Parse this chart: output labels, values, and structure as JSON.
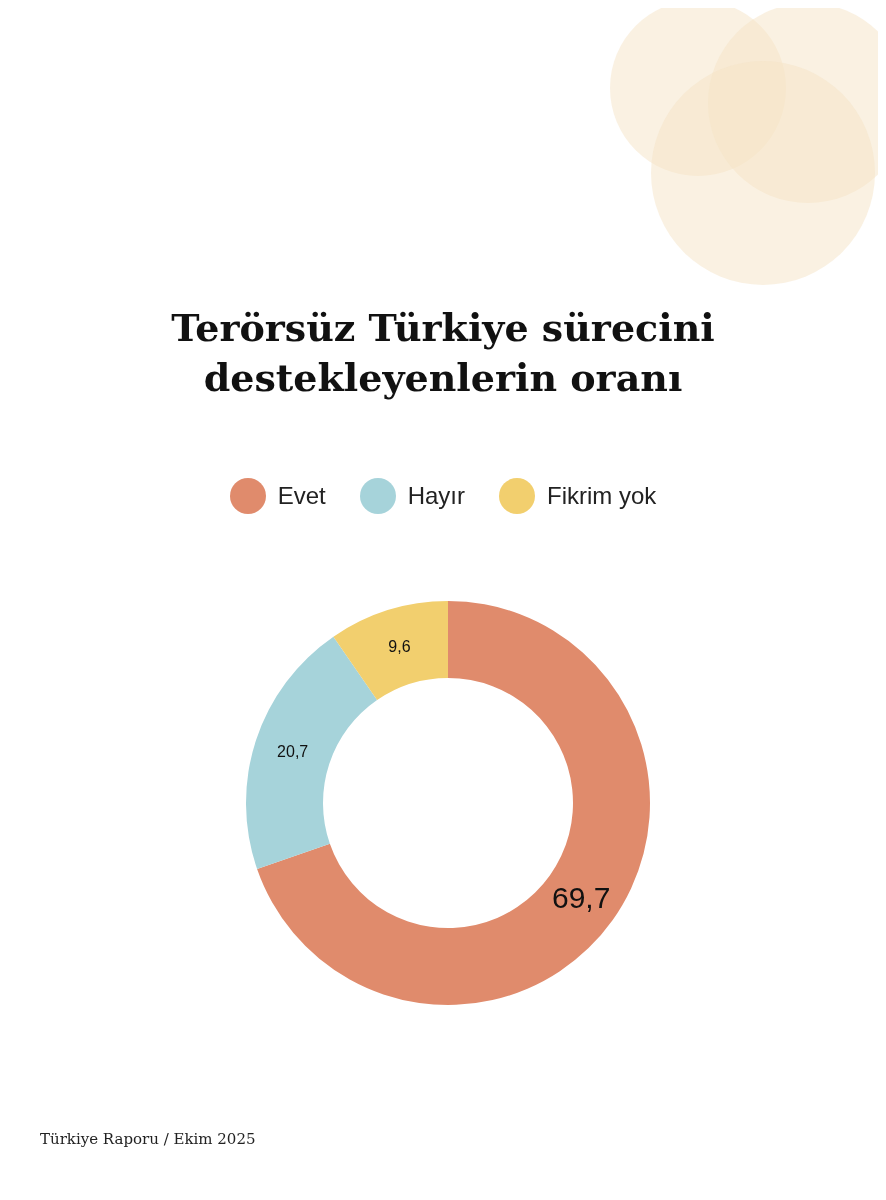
{
  "chart_data": {
    "type": "donut",
    "title": "Terörsüz Türkiye sürecini destekleyenlerin oranı",
    "categories": [
      "Evet",
      "Hayır",
      "Fikrim yok"
    ],
    "values": [
      69.7,
      20.7,
      9.6
    ],
    "value_labels": [
      "69,7",
      "20,7",
      "9,6"
    ],
    "colors": [
      "#e08b6c",
      "#a6d3da",
      "#f2cf6e"
    ],
    "legend": "top",
    "annotations": [
      "Türkiye Raporu / Ekim 2025"
    ]
  }
}
